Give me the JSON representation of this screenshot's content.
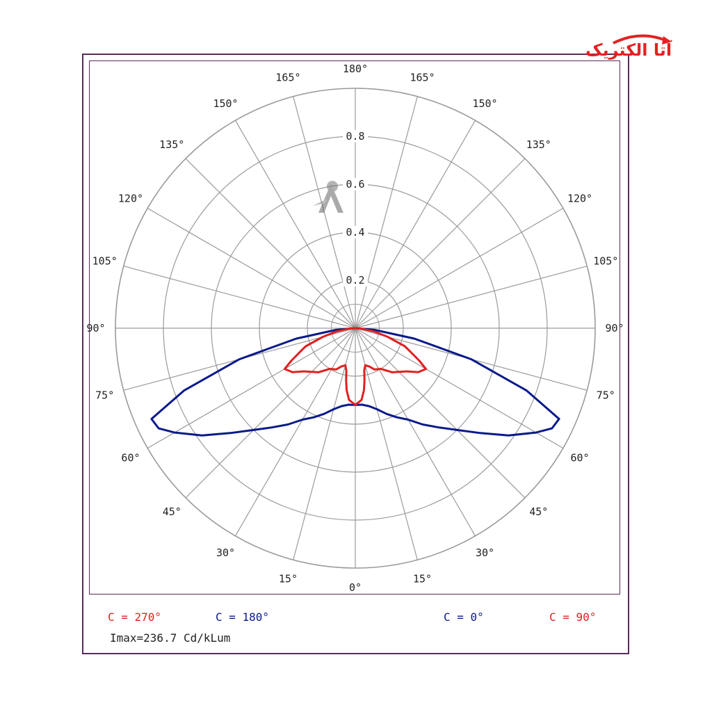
{
  "logo": {
    "text": "آتا الکتریک",
    "color": "#e32222"
  },
  "watermark_icon": "ata-a-watermark-icon",
  "chart_data": {
    "type": "polar",
    "angle_unit": "degrees",
    "left_angle_labels": [
      "0°",
      "15°",
      "30°",
      "45°",
      "60°",
      "75°",
      "90°",
      "105°",
      "120°",
      "135°",
      "150°",
      "165°",
      "180°"
    ],
    "right_angle_labels": [
      "15°",
      "30°",
      "45°",
      "60°",
      "75°",
      "90°",
      "105°",
      "120°",
      "135°",
      "150°",
      "165°"
    ],
    "angles": [
      0,
      15,
      30,
      45,
      60,
      75,
      90,
      105,
      120,
      135,
      150,
      165,
      180
    ],
    "ring_values": [
      0.2,
      0.4,
      0.6,
      0.8
    ],
    "ring_labels": [
      "0.2",
      "0.4",
      "0.6",
      "0.8"
    ],
    "rlim": [
      0,
      1.0
    ],
    "grid": true,
    "series": [
      {
        "name": "C = 0° / C = 180°",
        "color": "#0a1a8a",
        "left_label": "C = 180°",
        "right_label": "C = 0°",
        "points": [
          [
            0,
            0.32
          ],
          [
            5,
            0.32
          ],
          [
            10,
            0.33
          ],
          [
            15,
            0.35
          ],
          [
            20,
            0.38
          ],
          [
            25,
            0.41
          ],
          [
            30,
            0.44
          ],
          [
            35,
            0.49
          ],
          [
            40,
            0.54
          ],
          [
            45,
            0.6
          ],
          [
            50,
            0.68
          ],
          [
            55,
            0.78
          ],
          [
            60,
            0.87
          ],
          [
            63,
            0.92
          ],
          [
            66,
            0.93
          ],
          [
            70,
            0.76
          ],
          [
            75,
            0.5
          ],
          [
            80,
            0.25
          ],
          [
            85,
            0.08
          ],
          [
            90,
            0.0
          ]
        ]
      },
      {
        "name": "C = 90° / C = 270°",
        "color": "#e02020",
        "left_label": "C = 270°",
        "right_label": "C = 90°",
        "points": [
          [
            0,
            0.32
          ],
          [
            5,
            0.3
          ],
          [
            8,
            0.26
          ],
          [
            10,
            0.22
          ],
          [
            12,
            0.18
          ],
          [
            15,
            0.16
          ],
          [
            20,
            0.17
          ],
          [
            25,
            0.19
          ],
          [
            32,
            0.2
          ],
          [
            40,
            0.24
          ],
          [
            50,
            0.28
          ],
          [
            55,
            0.32
          ],
          [
            60,
            0.34
          ],
          [
            63,
            0.3
          ],
          [
            66,
            0.26
          ],
          [
            70,
            0.22
          ],
          [
            75,
            0.14
          ],
          [
            80,
            0.08
          ],
          [
            85,
            0.03
          ],
          [
            90,
            0.0
          ]
        ]
      }
    ]
  },
  "legend": {
    "c270": {
      "text": "C = 270°",
      "color": "#e02020"
    },
    "c180": {
      "text": "C = 180°",
      "color": "#0a1a8a"
    },
    "c0": {
      "text": "C = 0°",
      "color": "#0a1a8a"
    },
    "c90": {
      "text": "C = 90°",
      "color": "#e02020"
    }
  },
  "imax": "Imax=236.7 Cd/kLum"
}
